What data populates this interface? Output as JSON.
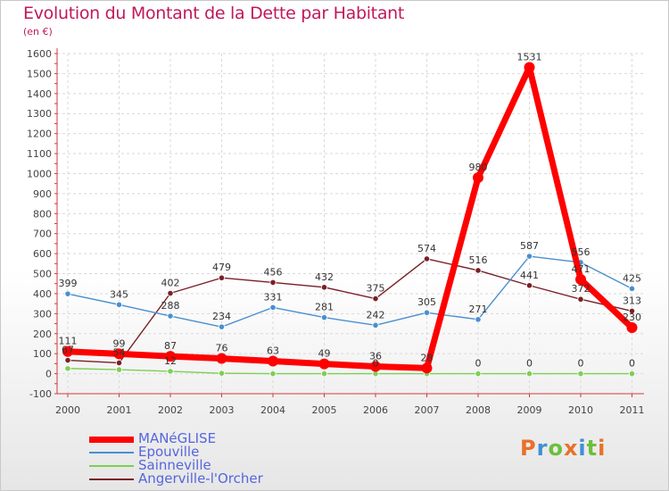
{
  "title": "Evolution du Montant de la Dette par Habitant",
  "unit": "(en €)",
  "brand": {
    "letters": [
      "P",
      "r",
      "o",
      "x",
      "i",
      "t",
      "i"
    ],
    "colors": [
      "#e8712a",
      "#3f8fd6",
      "#6cbf3a",
      "#e8712a",
      "#3f8fd6",
      "#6cbf3a",
      "#e8712a"
    ]
  },
  "chart_data": {
    "type": "line",
    "title": "Evolution du Montant de la Dette par Habitant",
    "ylabel": "(en €)",
    "xlabel": "",
    "ylim": [
      -100,
      1600
    ],
    "yticks": [
      -100,
      0,
      100,
      200,
      300,
      400,
      500,
      600,
      700,
      800,
      900,
      1000,
      1100,
      1200,
      1300,
      1400,
      1500,
      1600
    ],
    "categories": [
      "2000",
      "2001",
      "2002",
      "2003",
      "2004",
      "2005",
      "2006",
      "2007",
      "2008",
      "2009",
      "2010",
      "2011"
    ],
    "grid": true,
    "legend_position": "bottom-left",
    "series": [
      {
        "name": "MANéGLISE",
        "color": "#ff0000",
        "values": [
          111,
          99,
          87,
          76,
          63,
          49,
          36,
          28,
          980,
          1531,
          471,
          230
        ],
        "labels": [
          "111",
          "99",
          "87",
          "76",
          "63",
          "49",
          "36",
          "28",
          "980",
          "1531",
          "471",
          "230"
        ]
      },
      {
        "name": "Epouville",
        "color": "#4a8fd0",
        "values": [
          399,
          345,
          288,
          234,
          331,
          281,
          242,
          305,
          271,
          587,
          556,
          425
        ],
        "labels": [
          "399",
          "345",
          "288",
          "234",
          "331",
          "281",
          "242",
          "305",
          "271",
          "587",
          "556",
          "425"
        ]
      },
      {
        "name": "Sainneville",
        "color": "#7ccf55",
        "values": [
          26,
          20,
          12,
          2,
          0,
          0,
          0,
          0,
          0,
          0,
          0,
          0
        ],
        "labels": [
          "",
          "",
          "12",
          "",
          "",
          "",
          "0",
          "",
          "0",
          "0",
          "0",
          "0"
        ]
      },
      {
        "name": "Angerville-l'Orcher",
        "color": "#7a1f25",
        "values": [
          67,
          54,
          402,
          479,
          456,
          432,
          375,
          574,
          516,
          441,
          372,
          313
        ],
        "labels": [
          "67",
          "54",
          "402",
          "479",
          "456",
          "432",
          "375",
          "574",
          "516",
          "441",
          "372",
          "313"
        ]
      }
    ]
  }
}
